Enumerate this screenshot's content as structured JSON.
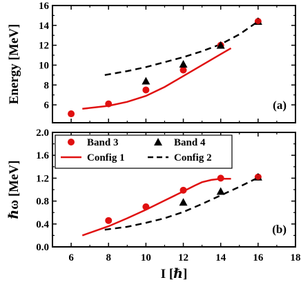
{
  "chart_data": [
    {
      "type": "line",
      "panel_label": "(a)",
      "ylabel": "Energy [MeV]",
      "xlim": [
        5,
        18
      ],
      "ylim": [
        4.2,
        16
      ],
      "xticks": [
        6,
        8,
        10,
        12,
        14,
        16,
        18
      ],
      "yticks": [
        6,
        8,
        10,
        12,
        14,
        16
      ],
      "series": [
        {
          "kind": "points",
          "marker": "circle",
          "color": "#e01010",
          "x": [
            6,
            8,
            10,
            12,
            14,
            16
          ],
          "y": [
            5.1,
            6.1,
            7.5,
            9.5,
            12.0,
            14.4
          ]
        },
        {
          "kind": "points",
          "marker": "triangle",
          "color": "#000000",
          "x": [
            10,
            12,
            14,
            16
          ],
          "y": [
            8.4,
            10.1,
            12.0,
            14.4
          ]
        },
        {
          "kind": "line",
          "style": "solid",
          "color": "#e01010",
          "x": [
            6.6,
            8,
            9,
            10,
            11,
            12,
            13,
            14,
            14.55
          ],
          "y": [
            5.6,
            5.9,
            6.3,
            6.9,
            7.8,
            8.9,
            10.0,
            11.1,
            11.7
          ]
        },
        {
          "kind": "line",
          "style": "dashed",
          "color": "#000000",
          "x": [
            7.8,
            9,
            10,
            11,
            12,
            13,
            14,
            15,
            16
          ],
          "y": [
            9.0,
            9.4,
            9.8,
            10.3,
            10.8,
            11.4,
            12.1,
            13.1,
            14.4
          ]
        }
      ]
    },
    {
      "type": "line",
      "panel_label": "(b)",
      "xlabel": "I [ℏ]",
      "ylabel": "ℏω [MeV]",
      "xlim": [
        5,
        18
      ],
      "ylim": [
        0,
        2.0
      ],
      "xticks": [
        6,
        8,
        10,
        12,
        14,
        16,
        18
      ],
      "yticks": [
        "0.0",
        "0.4",
        "0.8",
        "1.2",
        "1.6",
        "2.0"
      ],
      "legend": {
        "position": "top-left",
        "entries": [
          {
            "label": "Band 3",
            "marker": "circle",
            "color": "#e01010"
          },
          {
            "label": "Band 4",
            "marker": "triangle",
            "color": "#000000"
          },
          {
            "label": "Config 1",
            "line": "solid",
            "color": "#e01010"
          },
          {
            "label": "Config 2",
            "line": "dashed",
            "color": "#000000"
          }
        ]
      },
      "series": [
        {
          "kind": "points",
          "marker": "circle",
          "color": "#e01010",
          "x": [
            8,
            10,
            12,
            14,
            16
          ],
          "y": [
            0.46,
            0.7,
            0.99,
            1.2,
            1.22
          ]
        },
        {
          "kind": "points",
          "marker": "triangle",
          "color": "#000000",
          "x": [
            12,
            14,
            16
          ],
          "y": [
            0.78,
            0.97,
            1.22
          ]
        },
        {
          "kind": "line",
          "style": "solid",
          "color": "#e01010",
          "x": [
            6.6,
            8,
            9,
            10,
            11,
            12,
            12.6,
            13,
            13.5,
            14,
            14.55
          ],
          "y": [
            0.2,
            0.36,
            0.5,
            0.65,
            0.81,
            0.97,
            1.07,
            1.13,
            1.17,
            1.19,
            1.19
          ]
        },
        {
          "kind": "line",
          "style": "dashed",
          "color": "#000000",
          "x": [
            7.8,
            9,
            10,
            11,
            12,
            13,
            14,
            15,
            16
          ],
          "y": [
            0.3,
            0.35,
            0.42,
            0.5,
            0.61,
            0.75,
            0.9,
            1.05,
            1.21
          ]
        }
      ]
    }
  ]
}
